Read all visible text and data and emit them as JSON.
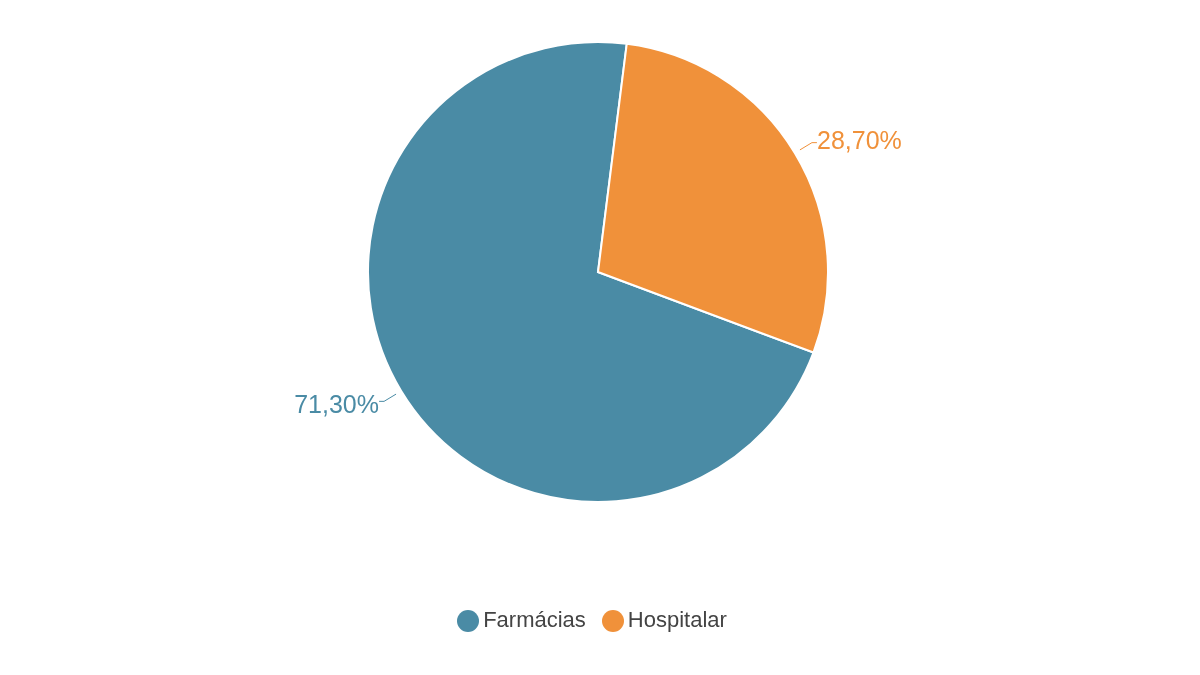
{
  "chart_data": {
    "type": "pie",
    "categories": [
      "Farmácias",
      "Hospitalar"
    ],
    "values": [
      71.3,
      28.7
    ],
    "colors": [
      "#4a8ba5",
      "#f0913a"
    ],
    "value_labels": [
      "71,30%",
      "28,70%"
    ],
    "legend": "bottom"
  }
}
